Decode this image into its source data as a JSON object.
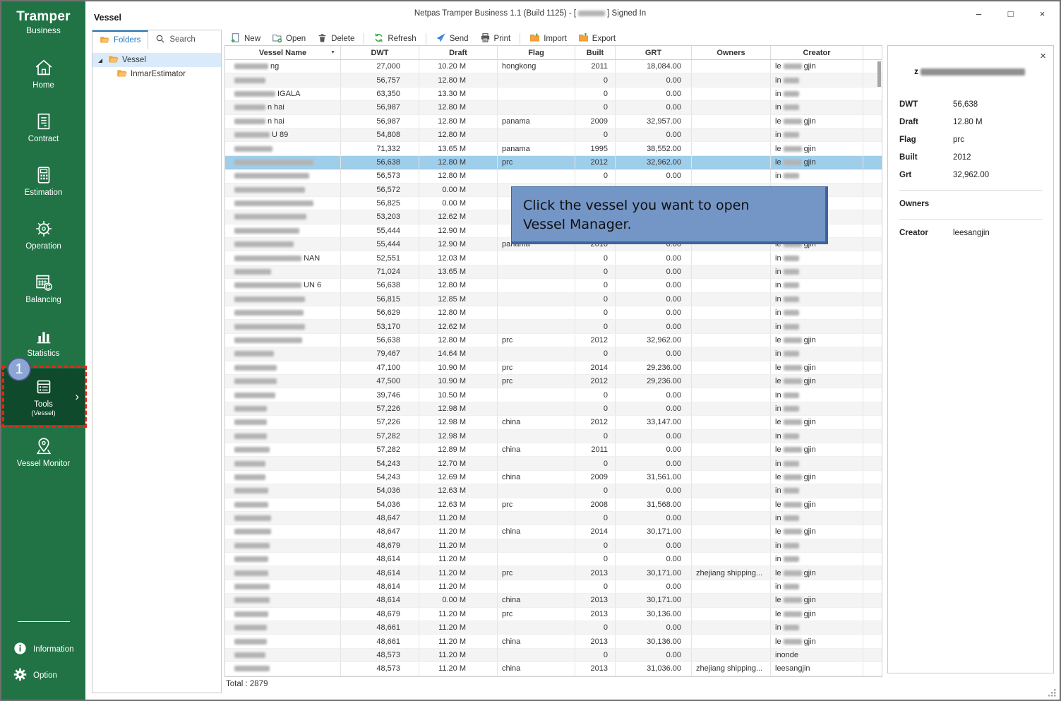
{
  "app": {
    "brand_line1": "Tramper",
    "brand_line2": "Business",
    "title_prefix": "Netpas Tramper Business 1.1 (Build 1125) - [",
    "title_suffix": "] Signed In",
    "window_controls": {
      "minimize": "–",
      "maximize": "□",
      "close": "×"
    }
  },
  "page": {
    "title": "Vessel"
  },
  "colors": {
    "sidebar_green": "#217346",
    "sidebar_active_green": "#0e4a2b",
    "highlight_red": "#e62617",
    "badge_blue": "#8ba6d4",
    "tab_active_blue": "#2779be",
    "row_selected_blue": "#9fceeb",
    "tooltip_blue": "#7496c6",
    "folder_orange": "#f2a33c"
  },
  "sidebar": {
    "items": [
      {
        "name": "home",
        "label": "Home",
        "icon": "home"
      },
      {
        "name": "contract",
        "label": "Contract",
        "icon": "contract"
      },
      {
        "name": "estimation",
        "label": "Estimation",
        "icon": "estimation"
      },
      {
        "name": "operation",
        "label": "Operation",
        "icon": "operation"
      },
      {
        "name": "balancing",
        "label": "Balancing",
        "icon": "balancing"
      },
      {
        "name": "statistics",
        "label": "Statistics",
        "icon": "statistics"
      },
      {
        "name": "tools",
        "label": "Tools",
        "sub": "(Vessel)",
        "icon": "tools",
        "active": true,
        "badge": "1"
      },
      {
        "name": "vessel-monitor",
        "label": "Vessel Monitor",
        "icon": "monitor"
      }
    ],
    "bottom": [
      {
        "name": "information",
        "label": "Information",
        "icon": "info"
      },
      {
        "name": "option",
        "label": "Option",
        "icon": "gear"
      }
    ]
  },
  "folders_panel": {
    "tabs": [
      {
        "name": "folders",
        "label": "Folders",
        "icon": "folder",
        "active": true
      },
      {
        "name": "search",
        "label": "Search",
        "icon": "search",
        "active": false
      }
    ],
    "tree": [
      {
        "name": "vessel",
        "label": "Vessel",
        "level": 0,
        "selected": true,
        "expanded": true
      },
      {
        "name": "inmarestimator",
        "label": "InmarEstimator",
        "level": 1
      }
    ]
  },
  "toolbar": {
    "items": [
      {
        "label": "New",
        "icon": "new"
      },
      {
        "label": "Open",
        "icon": "open"
      },
      {
        "label": "Delete",
        "icon": "delete"
      },
      {
        "sep": true
      },
      {
        "label": "Refresh",
        "icon": "refresh"
      },
      {
        "sep": true
      },
      {
        "label": "Send",
        "icon": "send"
      },
      {
        "label": "Print",
        "icon": "print"
      },
      {
        "sep": true
      },
      {
        "label": "Import",
        "icon": "import"
      },
      {
        "label": "Export",
        "icon": "export"
      }
    ]
  },
  "table": {
    "columns": [
      "Vessel Name",
      "DWT",
      "Draft",
      "Flag",
      "Built",
      "GRT",
      "Owners",
      "Creator",
      ""
    ],
    "total_label": "Total : 2879",
    "rows": [
      {
        "nm": 48,
        "ns": "ng",
        "dwt": "27,000",
        "dr": "10.20 M",
        "fl": "hongkong",
        "bu": "2011",
        "gr": "18,084.00",
        "ow": "",
        "cr": "lee"
      },
      {
        "nm": 44,
        "ns": "",
        "dwt": "56,757",
        "dr": "12.80 M",
        "fl": "",
        "bu": "0",
        "gr": "0.00",
        "ow": "",
        "cr": "in"
      },
      {
        "nm": 58,
        "ns": "IGALA",
        "dwt": "63,350",
        "dr": "13.30 M",
        "fl": "",
        "bu": "0",
        "gr": "0.00",
        "ow": "",
        "cr": "in"
      },
      {
        "nm": 44,
        "ns": "n hai",
        "dwt": "56,987",
        "dr": "12.80 M",
        "fl": "",
        "bu": "0",
        "gr": "0.00",
        "ow": "",
        "cr": "in"
      },
      {
        "nm": 44,
        "ns": "n hai",
        "dwt": "56,987",
        "dr": "12.80 M",
        "fl": "panama",
        "bu": "2009",
        "gr": "32,957.00",
        "ow": "",
        "cr": "lee"
      },
      {
        "nm": 50,
        "ns": "U 89",
        "dwt": "54,808",
        "dr": "12.80 M",
        "fl": "",
        "bu": "0",
        "gr": "0.00",
        "ow": "",
        "cr": "in"
      },
      {
        "nm": 54,
        "ns": "",
        "dwt": "71,332",
        "dr": "13.65 M",
        "fl": "panama",
        "bu": "1995",
        "gr": "38,552.00",
        "ow": "",
        "cr": "lee"
      },
      {
        "nm": 112,
        "ns": "",
        "dwt": "56,638",
        "dr": "12.80 M",
        "fl": "prc",
        "bu": "2012",
        "gr": "32,962.00",
        "ow": "",
        "cr": "lee",
        "sel": true
      },
      {
        "nm": 106,
        "ns": "",
        "dwt": "56,573",
        "dr": "12.80 M",
        "fl": "",
        "bu": "0",
        "gr": "0.00",
        "ow": "",
        "cr": "in"
      },
      {
        "nm": 100,
        "ns": "",
        "dwt": "56,572",
        "dr": "0.00 M",
        "fl": "",
        "bu": "",
        "gr": "",
        "ow": "",
        "cr": ""
      },
      {
        "nm": 112,
        "ns": "",
        "dwt": "56,825",
        "dr": "0.00 M",
        "fl": "",
        "bu": "",
        "gr": "",
        "ow": "",
        "cr": ""
      },
      {
        "nm": 102,
        "ns": "",
        "dwt": "53,203",
        "dr": "12.62 M",
        "fl": "",
        "bu": "",
        "gr": "",
        "ow": "",
        "cr": ""
      },
      {
        "nm": 92,
        "ns": "",
        "dwt": "55,444",
        "dr": "12.90 M",
        "fl": "",
        "bu": "",
        "gr": "",
        "ow": "",
        "cr": ""
      },
      {
        "nm": 84,
        "ns": "",
        "dwt": "55,444",
        "dr": "12.90 M",
        "fl": "panama",
        "bu": "2010",
        "gr": "0.00",
        "ow": "",
        "cr": "lee"
      },
      {
        "nm": 95,
        "ns": "NAN",
        "dwt": "52,551",
        "dr": "12.03 M",
        "fl": "",
        "bu": "0",
        "gr": "0.00",
        "ow": "",
        "cr": "in"
      },
      {
        "nm": 52,
        "ns": "",
        "dwt": "71,024",
        "dr": "13.65 M",
        "fl": "",
        "bu": "0",
        "gr": "0.00",
        "ow": "",
        "cr": "in"
      },
      {
        "nm": 95,
        "ns": "UN 6",
        "dwt": "56,638",
        "dr": "12.80 M",
        "fl": "",
        "bu": "0",
        "gr": "0.00",
        "ow": "",
        "cr": "in"
      },
      {
        "nm": 100,
        "ns": "",
        "dwt": "56,815",
        "dr": "12.85 M",
        "fl": "",
        "bu": "0",
        "gr": "0.00",
        "ow": "",
        "cr": "in"
      },
      {
        "nm": 98,
        "ns": "",
        "dwt": "56,629",
        "dr": "12.80 M",
        "fl": "",
        "bu": "0",
        "gr": "0.00",
        "ow": "",
        "cr": "in"
      },
      {
        "nm": 100,
        "ns": "",
        "dwt": "53,170",
        "dr": "12.62 M",
        "fl": "",
        "bu": "0",
        "gr": "0.00",
        "ow": "",
        "cr": "in"
      },
      {
        "nm": 96,
        "ns": "",
        "dwt": "56,638",
        "dr": "12.80 M",
        "fl": "prc",
        "bu": "2012",
        "gr": "32,962.00",
        "ow": "",
        "cr": "lee"
      },
      {
        "nm": 56,
        "ns": "",
        "dwt": "79,467",
        "dr": "14.64 M",
        "fl": "",
        "bu": "0",
        "gr": "0.00",
        "ow": "",
        "cr": "in"
      },
      {
        "nm": 60,
        "ns": "",
        "dwt": "47,100",
        "dr": "10.90 M",
        "fl": "prc",
        "bu": "2014",
        "gr": "29,236.00",
        "ow": "",
        "cr": "lee"
      },
      {
        "nm": 60,
        "ns": "",
        "dwt": "47,500",
        "dr": "10.90 M",
        "fl": "prc",
        "bu": "2012",
        "gr": "29,236.00",
        "ow": "",
        "cr": "lee"
      },
      {
        "nm": 58,
        "ns": "",
        "dwt": "39,746",
        "dr": "10.50 M",
        "fl": "",
        "bu": "0",
        "gr": "0.00",
        "ow": "",
        "cr": "in"
      },
      {
        "nm": 46,
        "ns": "",
        "dwt": "57,226",
        "dr": "12.98 M",
        "fl": "",
        "bu": "0",
        "gr": "0.00",
        "ow": "",
        "cr": "in"
      },
      {
        "nm": 46,
        "ns": "",
        "dwt": "57,226",
        "dr": "12.98 M",
        "fl": "china",
        "bu": "2012",
        "gr": "33,147.00",
        "ow": "",
        "cr": "lee"
      },
      {
        "nm": 46,
        "ns": "",
        "dwt": "57,282",
        "dr": "12.98 M",
        "fl": "",
        "bu": "0",
        "gr": "0.00",
        "ow": "",
        "cr": "in"
      },
      {
        "nm": 50,
        "ns": "",
        "dwt": "57,282",
        "dr": "12.89 M",
        "fl": "china",
        "bu": "2011",
        "gr": "0.00",
        "ow": "",
        "cr": "lee"
      },
      {
        "nm": 44,
        "ns": "",
        "dwt": "54,243",
        "dr": "12.70 M",
        "fl": "",
        "bu": "0",
        "gr": "0.00",
        "ow": "",
        "cr": "in"
      },
      {
        "nm": 44,
        "ns": "",
        "dwt": "54,243",
        "dr": "12.69 M",
        "fl": "china",
        "bu": "2009",
        "gr": "31,561.00",
        "ow": "",
        "cr": "lee"
      },
      {
        "nm": 48,
        "ns": "",
        "dwt": "54,036",
        "dr": "12.63 M",
        "fl": "",
        "bu": "0",
        "gr": "0.00",
        "ow": "",
        "cr": "in"
      },
      {
        "nm": 48,
        "ns": "",
        "dwt": "54,036",
        "dr": "12.63 M",
        "fl": "prc",
        "bu": "2008",
        "gr": "31,568.00",
        "ow": "",
        "cr": "lee"
      },
      {
        "nm": 52,
        "ns": "",
        "dwt": "48,647",
        "dr": "11.20 M",
        "fl": "",
        "bu": "0",
        "gr": "0.00",
        "ow": "",
        "cr": "in"
      },
      {
        "nm": 52,
        "ns": "",
        "dwt": "48,647",
        "dr": "11.20 M",
        "fl": "china",
        "bu": "2014",
        "gr": "30,171.00",
        "ow": "",
        "cr": "lee"
      },
      {
        "nm": 50,
        "ns": "",
        "dwt": "48,679",
        "dr": "11.20 M",
        "fl": "",
        "bu": "0",
        "gr": "0.00",
        "ow": "",
        "cr": "in"
      },
      {
        "nm": 48,
        "ns": "",
        "dwt": "48,614",
        "dr": "11.20 M",
        "fl": "",
        "bu": "0",
        "gr": "0.00",
        "ow": "",
        "cr": "in"
      },
      {
        "nm": 48,
        "ns": "",
        "dwt": "48,614",
        "dr": "11.20 M",
        "fl": "prc",
        "bu": "2013",
        "gr": "30,171.00",
        "ow": "zhejiang shipping...",
        "cr": "lee"
      },
      {
        "nm": 50,
        "ns": "",
        "dwt": "48,614",
        "dr": "11.20 M",
        "fl": "",
        "bu": "0",
        "gr": "0.00",
        "ow": "",
        "cr": "in"
      },
      {
        "nm": 50,
        "ns": "",
        "dwt": "48,614",
        "dr": "0.00 M",
        "fl": "china",
        "bu": "2013",
        "gr": "30,171.00",
        "ow": "",
        "cr": "lee"
      },
      {
        "nm": 48,
        "ns": "",
        "dwt": "48,679",
        "dr": "11.20 M",
        "fl": "prc",
        "bu": "2013",
        "gr": "30,136.00",
        "ow": "",
        "cr": "lee"
      },
      {
        "nm": 46,
        "ns": "",
        "dwt": "48,661",
        "dr": "11.20 M",
        "fl": "",
        "bu": "0",
        "gr": "0.00",
        "ow": "",
        "cr": "in"
      },
      {
        "nm": 46,
        "ns": "",
        "dwt": "48,661",
        "dr": "11.20 M",
        "fl": "china",
        "bu": "2013",
        "gr": "30,136.00",
        "ow": "",
        "cr": "lee"
      },
      {
        "nm": 44,
        "ns": "",
        "dwt": "48,573",
        "dr": "11.20 M",
        "fl": "",
        "bu": "0",
        "gr": "0.00",
        "ow": "",
        "cr": "inonde"
      },
      {
        "nm": 50,
        "ns": "",
        "dwt": "48,573",
        "dr": "11.20 M",
        "fl": "china",
        "bu": "2013",
        "gr": "31,036.00",
        "ow": "zhejiang shipping...",
        "cr": "leesangjin"
      }
    ]
  },
  "detail": {
    "title_prefix": "z",
    "fields": [
      {
        "label": "DWT",
        "value": "56,638"
      },
      {
        "label": "Draft",
        "value": "12.80 M"
      },
      {
        "label": "Flag",
        "value": "prc"
      },
      {
        "label": "Built",
        "value": "2012"
      },
      {
        "label": "Grt",
        "value": "32,962.00"
      }
    ],
    "owners_label": "Owners",
    "owners_value": "",
    "creator_label": "Creator",
    "creator_value": "leesangjin"
  },
  "tooltip": {
    "line1": "Click the vessel you want to open",
    "line2": "Vessel Manager."
  },
  "annotation": {
    "badge": "1"
  }
}
